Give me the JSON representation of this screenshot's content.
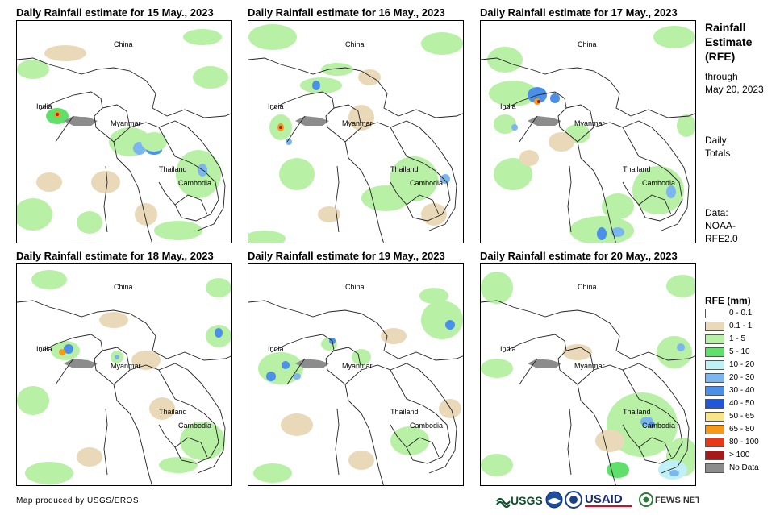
{
  "panels": [
    {
      "title": "Daily Rainfall estimate for 15 May., 2023",
      "labels": {
        "china": "China",
        "india": "India",
        "myanmar": "Myanmar",
        "thailand": "Thailand",
        "cambodia": "Cambodia"
      }
    },
    {
      "title": "Daily Rainfall estimate for 16 May., 2023",
      "labels": {
        "china": "China",
        "india": "India",
        "myanmar": "Myanmar",
        "thailand": "Thailand",
        "cambodia": "Cambodia"
      }
    },
    {
      "title": "Daily Rainfall estimate for 17 May., 2023",
      "labels": {
        "china": "China",
        "india": "India",
        "myanmar": "Myanmar",
        "thailand": "Thailand",
        "cambodia": "Cambodia"
      }
    },
    {
      "title": "Daily Rainfall estimate for 18 May., 2023",
      "labels": {
        "china": "China",
        "india": "India",
        "myanmar": "Myanmar",
        "thailand": "Thailand",
        "cambodia": "Cambodia"
      }
    },
    {
      "title": "Daily Rainfall estimate for 19 May., 2023",
      "labels": {
        "china": "China",
        "india": "India",
        "myanmar": "Myanmar",
        "thailand": "Thailand",
        "cambodia": "Cambodia"
      }
    },
    {
      "title": "Daily Rainfall estimate for 20 May., 2023",
      "labels": {
        "china": "China",
        "india": "India",
        "myanmar": "Myanmar",
        "thailand": "Thailand",
        "cambodia": "Cambodia"
      }
    }
  ],
  "sidebar": {
    "title_line1": "Rainfall",
    "title_line2": "Estimate",
    "title_line3": "(RFE)",
    "through": "through",
    "through_date": "May 20, 2023",
    "daily": "Daily",
    "totals": "Totals",
    "data_label": "Data:",
    "data_source1": "NOAA-",
    "data_source2": "RFE2.0"
  },
  "legend": {
    "title": "RFE (mm)",
    "items": [
      {
        "label": "0 - 0.1",
        "color": "#ffffff"
      },
      {
        "label": "0.1 - 1",
        "color": "#ead9b9"
      },
      {
        "label": "1 - 5",
        "color": "#b8f0a6"
      },
      {
        "label": "5 - 10",
        "color": "#5fe06a"
      },
      {
        "label": "10 - 20",
        "color": "#bff0f6"
      },
      {
        "label": "20 - 30",
        "color": "#7cb6ee"
      },
      {
        "label": "30 - 40",
        "color": "#4a8fe8"
      },
      {
        "label": "40 - 50",
        "color": "#1f57d8"
      },
      {
        "label": "50 - 65",
        "color": "#f8e58a"
      },
      {
        "label": "65 - 80",
        "color": "#f49a18"
      },
      {
        "label": "80 - 100",
        "color": "#e8381a"
      },
      {
        "label": "> 100",
        "color": "#a61a1a"
      },
      {
        "label": "No Data",
        "color": "#8c8c8c"
      }
    ]
  },
  "credit": "Map produced by USGS/EROS",
  "logos": {
    "usgs": "USGS",
    "usaid": "USAID",
    "fewsnet": "FEWS NET"
  }
}
